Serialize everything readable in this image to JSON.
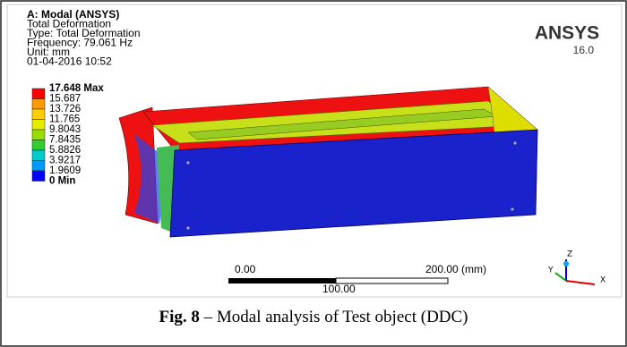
{
  "figure": {
    "header": {
      "lines": [
        "A: Modal (ANSYS)",
        "Total Deformation",
        "Type: Total Deformation",
        "Frequency: 79.061 Hz",
        "Unit: mm",
        "01-04-2016 10:52"
      ]
    },
    "logo": {
      "name": "ANSYS",
      "version": "16.0"
    },
    "legend": {
      "labels": [
        "17.648 Max",
        "15.687",
        "13.726",
        "11.765",
        "9.8043",
        "7.8435",
        "5.8826",
        "3.9217",
        "1.9609",
        "0 Min"
      ],
      "colors": [
        "#ff0000",
        "#ff9900",
        "#ffcc00",
        "#e6ee00",
        "#99dd00",
        "#33cc33",
        "#00cccc",
        "#0099ff",
        "#0000ff"
      ]
    },
    "scale": {
      "start": "0.00",
      "end": "200.00 (mm)",
      "middle": "100.00"
    },
    "triad": {
      "z": "Z",
      "y": "Y",
      "x": "X"
    },
    "caption": {
      "label": "Fig. 8",
      "text": " – Modal analysis of Test object (DDC)"
    }
  }
}
